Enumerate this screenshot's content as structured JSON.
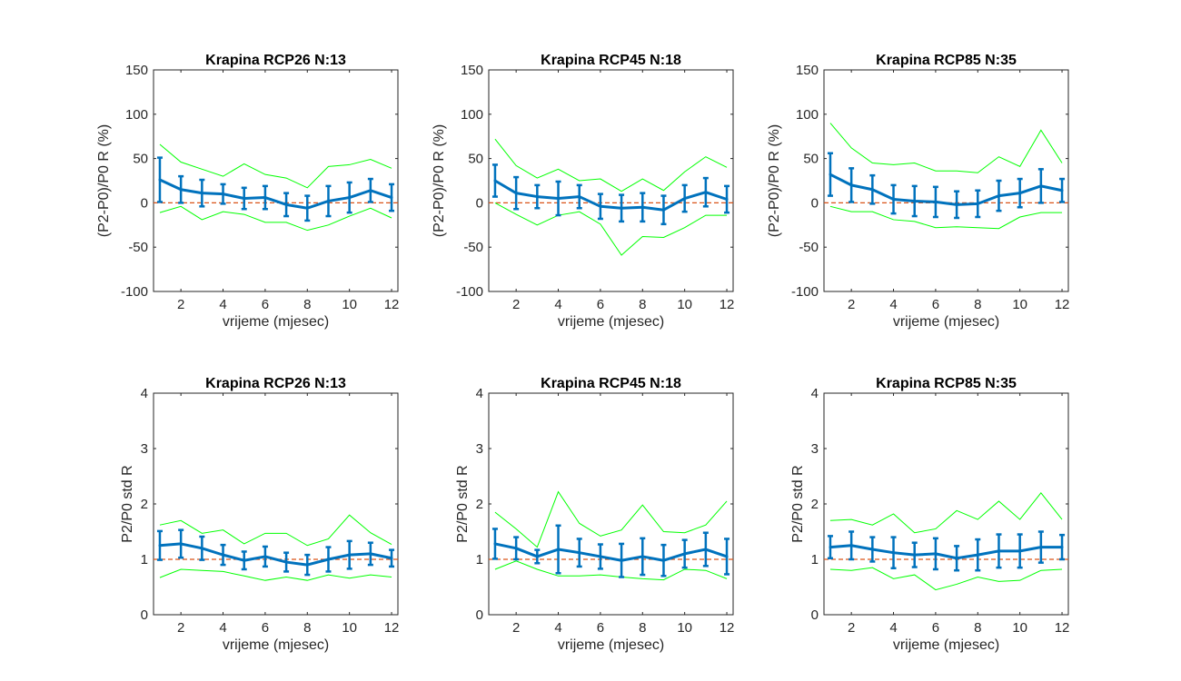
{
  "colors": {
    "mean_line": "#0072BD",
    "bounds": "#00FF00",
    "reference": "#D95319",
    "axes": "#262626"
  },
  "chart_data": [
    {
      "type": "line",
      "title": "Krapina RCP26 N:13",
      "xlabel": "vrijeme (mjesec)",
      "ylabel": "(P2-P0)/P0 R (%)",
      "xlim": [
        0.7,
        12.3
      ],
      "ylim": [
        -100,
        150
      ],
      "xticks": [
        2,
        4,
        6,
        8,
        10,
        12
      ],
      "yticks": [
        -100,
        -50,
        0,
        50,
        100,
        150
      ],
      "reference_y": 0,
      "grid": false,
      "x": [
        1,
        2,
        3,
        4,
        5,
        6,
        7,
        8,
        9,
        10,
        11,
        12
      ],
      "series": [
        {
          "role": "mean",
          "values": [
            26,
            15,
            11,
            10,
            5,
            6,
            -2,
            -6,
            2,
            6,
            14,
            6
          ],
          "error": [
            25,
            15,
            15,
            11,
            12,
            13,
            13,
            14,
            17,
            17,
            13,
            15
          ]
        },
        {
          "role": "upper",
          "values": [
            66,
            46,
            38,
            30,
            44,
            32,
            28,
            17,
            41,
            43,
            49,
            39
          ]
        },
        {
          "role": "lower",
          "values": [
            -11,
            -4,
            -19,
            -10,
            -13,
            -22,
            -22,
            -31,
            -25,
            -15,
            -6,
            -17
          ]
        }
      ]
    },
    {
      "type": "line",
      "title": "Krapina RCP45 N:18",
      "xlabel": "vrijeme (mjesec)",
      "ylabel": "(P2-P0)/P0 R (%)",
      "xlim": [
        0.7,
        12.3
      ],
      "ylim": [
        -100,
        150
      ],
      "xticks": [
        2,
        4,
        6,
        8,
        10,
        12
      ],
      "yticks": [
        -100,
        -50,
        0,
        50,
        100,
        150
      ],
      "reference_y": 0,
      "grid": false,
      "x": [
        1,
        2,
        3,
        4,
        5,
        6,
        7,
        8,
        9,
        10,
        11,
        12
      ],
      "series": [
        {
          "role": "mean",
          "values": [
            25,
            11,
            7,
            5,
            7,
            -4,
            -6,
            -5,
            -8,
            5,
            12,
            4
          ],
          "error": [
            18,
            18,
            13,
            19,
            13,
            14,
            15,
            16,
            16,
            15,
            16,
            15
          ]
        },
        {
          "role": "upper",
          "values": [
            72,
            42,
            28,
            38,
            25,
            27,
            13,
            27,
            14,
            35,
            52,
            40
          ]
        },
        {
          "role": "lower",
          "values": [
            0,
            -13,
            -25,
            -14,
            -10,
            -24,
            -59,
            -38,
            -39,
            -28,
            -14,
            -14
          ]
        }
      ]
    },
    {
      "type": "line",
      "title": "Krapina RCP85 N:35",
      "xlabel": "vrijeme (mjesec)",
      "ylabel": "(P2-P0)/P0 R (%)",
      "xlim": [
        0.7,
        12.3
      ],
      "ylim": [
        -100,
        150
      ],
      "xticks": [
        2,
        4,
        6,
        8,
        10,
        12
      ],
      "yticks": [
        -100,
        -50,
        0,
        50,
        100,
        150
      ],
      "reference_y": 0,
      "grid": false,
      "x": [
        1,
        2,
        3,
        4,
        5,
        6,
        7,
        8,
        9,
        10,
        11,
        12
      ],
      "series": [
        {
          "role": "mean",
          "values": [
            32,
            20,
            15,
            4,
            2,
            1,
            -2,
            -1,
            8,
            11,
            19,
            14
          ],
          "error": [
            24,
            19,
            16,
            16,
            17,
            17,
            15,
            15,
            17,
            16,
            19,
            13
          ]
        },
        {
          "role": "upper",
          "values": [
            90,
            62,
            45,
            43,
            45,
            36,
            36,
            34,
            52,
            41,
            82,
            45
          ]
        },
        {
          "role": "lower",
          "values": [
            -4,
            -10,
            -10,
            -19,
            -21,
            -28,
            -27,
            -28,
            -29,
            -16,
            -11,
            -11
          ]
        }
      ]
    },
    {
      "type": "line",
      "title": "Krapina RCP26 N:13",
      "xlabel": "vrijeme (mjesec)",
      "ylabel": "P2/P0 std R",
      "xlim": [
        0.7,
        12.3
      ],
      "ylim": [
        0,
        4
      ],
      "xticks": [
        2,
        4,
        6,
        8,
        10,
        12
      ],
      "yticks": [
        0,
        1,
        2,
        3,
        4
      ],
      "reference_y": 1,
      "grid": false,
      "x": [
        1,
        2,
        3,
        4,
        5,
        6,
        7,
        8,
        9,
        10,
        11,
        12
      ],
      "series": [
        {
          "role": "mean",
          "values": [
            1.25,
            1.28,
            1.2,
            1.08,
            0.98,
            1.05,
            0.95,
            0.9,
            1.0,
            1.08,
            1.1,
            1.02
          ],
          "error": [
            0.26,
            0.25,
            0.21,
            0.18,
            0.16,
            0.18,
            0.17,
            0.18,
            0.22,
            0.25,
            0.2,
            0.15
          ]
        },
        {
          "role": "upper",
          "values": [
            1.62,
            1.7,
            1.47,
            1.53,
            1.28,
            1.47,
            1.47,
            1.25,
            1.37,
            1.8,
            1.48,
            1.27
          ]
        },
        {
          "role": "lower",
          "values": [
            0.67,
            0.82,
            0.8,
            0.78,
            0.7,
            0.62,
            0.68,
            0.62,
            0.72,
            0.66,
            0.72,
            0.68
          ]
        }
      ]
    },
    {
      "type": "line",
      "title": "Krapina RCP45 N:18",
      "xlabel": "vrijeme (mjesec)",
      "ylabel": "P2/P0 std R",
      "xlim": [
        0.7,
        12.3
      ],
      "ylim": [
        0,
        4
      ],
      "xticks": [
        2,
        4,
        6,
        8,
        10,
        12
      ],
      "yticks": [
        0,
        1,
        2,
        3,
        4
      ],
      "reference_y": 1,
      "grid": false,
      "x": [
        1,
        2,
        3,
        4,
        5,
        6,
        7,
        8,
        9,
        10,
        11,
        12
      ],
      "series": [
        {
          "role": "mean",
          "values": [
            1.28,
            1.2,
            1.05,
            1.18,
            1.12,
            1.05,
            0.98,
            1.05,
            0.98,
            1.1,
            1.18,
            1.05
          ],
          "error": [
            0.27,
            0.2,
            0.12,
            0.43,
            0.25,
            0.22,
            0.3,
            0.33,
            0.28,
            0.25,
            0.3,
            0.32
          ]
        },
        {
          "role": "upper",
          "values": [
            1.85,
            1.55,
            1.22,
            2.22,
            1.65,
            1.42,
            1.53,
            1.98,
            1.5,
            1.48,
            1.62,
            2.05
          ]
        },
        {
          "role": "lower",
          "values": [
            0.82,
            0.97,
            0.82,
            0.7,
            0.7,
            0.72,
            0.68,
            0.65,
            0.63,
            0.82,
            0.8,
            0.65
          ]
        }
      ]
    },
    {
      "type": "line",
      "title": "Krapina RCP85 N:35",
      "xlabel": "vrijeme (mjesec)",
      "ylabel": "P2/P0 std R",
      "xlim": [
        0.7,
        12.3
      ],
      "ylim": [
        0,
        4
      ],
      "xticks": [
        2,
        4,
        6,
        8,
        10,
        12
      ],
      "yticks": [
        0,
        1,
        2,
        3,
        4
      ],
      "reference_y": 1,
      "grid": false,
      "x": [
        1,
        2,
        3,
        4,
        5,
        6,
        7,
        8,
        9,
        10,
        11,
        12
      ],
      "series": [
        {
          "role": "mean",
          "values": [
            1.22,
            1.25,
            1.18,
            1.12,
            1.08,
            1.1,
            1.02,
            1.08,
            1.15,
            1.15,
            1.22,
            1.22
          ],
          "error": [
            0.2,
            0.25,
            0.22,
            0.28,
            0.22,
            0.28,
            0.22,
            0.28,
            0.3,
            0.3,
            0.28,
            0.22
          ]
        },
        {
          "role": "upper",
          "values": [
            1.7,
            1.72,
            1.62,
            1.82,
            1.48,
            1.55,
            1.88,
            1.72,
            2.05,
            1.72,
            2.2,
            1.72
          ]
        },
        {
          "role": "lower",
          "values": [
            0.82,
            0.8,
            0.85,
            0.65,
            0.72,
            0.45,
            0.55,
            0.68,
            0.6,
            0.62,
            0.8,
            0.82
          ]
        }
      ]
    }
  ]
}
